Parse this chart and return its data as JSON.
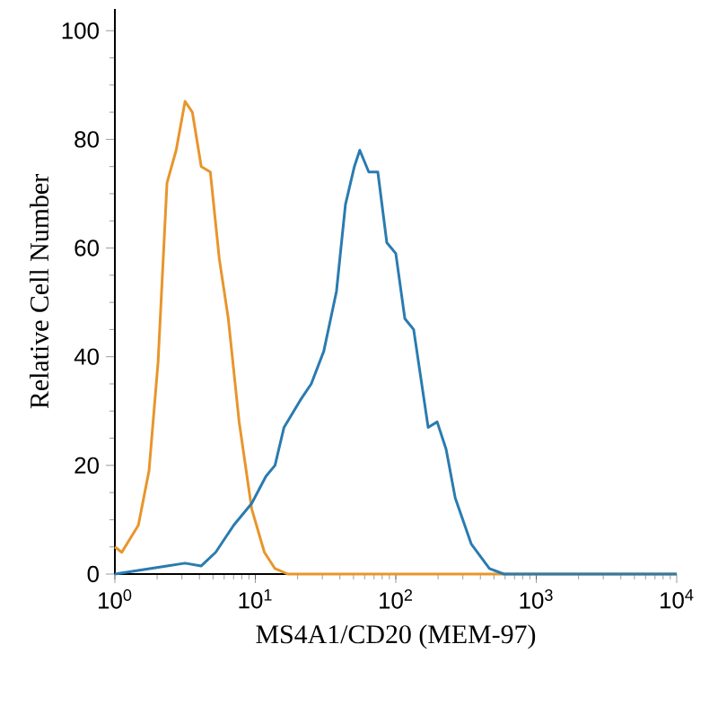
{
  "chart_data": {
    "type": "line",
    "xlabel": "MS4A1/CD20 (MEM-97)",
    "ylabel": "Relative Cell Number",
    "log": "x",
    "xlim": [
      1,
      10000
    ],
    "ylim": [
      0,
      104
    ],
    "xticks": [
      {
        "value": 1,
        "label": "10$^{0}$"
      },
      {
        "value": 10,
        "label": "10$^{1}$"
      },
      {
        "value": 100,
        "label": "10$^{2}$"
      },
      {
        "value": 1000,
        "label": "10$^{3}$"
      },
      {
        "value": 10000,
        "label": "10$^{4}$"
      }
    ],
    "yticks": [
      0,
      20,
      40,
      60,
      80,
      100
    ],
    "marker": "none",
    "line_style": "solid",
    "series": [
      {
        "color": "#e8952b",
        "x": [
          1,
          1.12,
          1.47,
          1.75,
          2.03,
          2.35,
          2.73,
          3.16,
          3.56,
          4.12,
          4.78,
          5.54,
          6.42,
          7.67,
          9.42,
          11.6,
          13.8,
          17,
          10000
        ],
        "values": [
          5,
          4,
          9,
          19,
          39,
          72,
          78,
          87,
          85,
          75,
          74,
          58,
          47,
          28,
          12,
          4,
          1,
          0,
          0
        ]
      },
      {
        "color": "#2a7bb0",
        "x": [
          1,
          2.35,
          3.16,
          4.12,
          5.22,
          7.02,
          9.42,
          11.9,
          13.8,
          16,
          20.9,
          25,
          30.7,
          37.8,
          43.8,
          50.7,
          55.4,
          64.2,
          74.5,
          86.3,
          100,
          116,
          134,
          170,
          197,
          228,
          265,
          345,
          464,
          588,
          10000
        ],
        "values": [
          0,
          1.5,
          2,
          1.5,
          4,
          9,
          13,
          18,
          20,
          27,
          32,
          35,
          41,
          52,
          68,
          75,
          78,
          74,
          74,
          61,
          59,
          47,
          45,
          27,
          28,
          23,
          14,
          5.5,
          1,
          0,
          0
        ]
      }
    ]
  }
}
